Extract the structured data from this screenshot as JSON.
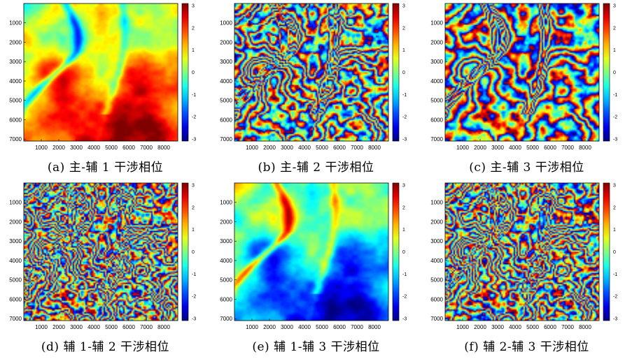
{
  "chart_data": [
    {
      "type": "heatmap",
      "caption": "(a)  主-辅 1 干涉相位",
      "pattern": 0,
      "x_ticks": [
        1000,
        2000,
        3000,
        4000,
        5000,
        6000,
        7000,
        8000
      ],
      "y_ticks": [
        1000,
        2000,
        3000,
        4000,
        5000,
        6000,
        7000
      ],
      "xlim": [
        0,
        8800
      ],
      "ylim": [
        0,
        7100
      ],
      "colorbar_ticks": [
        3,
        2,
        1,
        0,
        -1,
        -2,
        -3
      ],
      "colormap": "jet"
    },
    {
      "type": "heatmap",
      "caption": "(b)  主-辅 2 干涉相位",
      "pattern": 1,
      "x_ticks": [
        1000,
        2000,
        3000,
        4000,
        5000,
        6000,
        7000,
        8000
      ],
      "y_ticks": [
        1000,
        2000,
        3000,
        4000,
        5000,
        6000,
        7000
      ],
      "xlim": [
        0,
        8800
      ],
      "ylim": [
        0,
        7100
      ],
      "colorbar_ticks": [
        3,
        2,
        1,
        0,
        -1,
        -2,
        -3
      ],
      "colormap": "jet"
    },
    {
      "type": "heatmap",
      "caption": "(c)  主-辅 3 干涉相位",
      "pattern": 2,
      "x_ticks": [
        1000,
        2000,
        3000,
        4000,
        5000,
        6000,
        7000,
        8000
      ],
      "y_ticks": [
        1000,
        2000,
        3000,
        4000,
        5000,
        6000,
        7000
      ],
      "xlim": [
        0,
        8800
      ],
      "ylim": [
        0,
        7100
      ],
      "colorbar_ticks": [
        3,
        2,
        1,
        0,
        -1,
        -2,
        -3
      ],
      "colormap": "jet"
    },
    {
      "type": "heatmap",
      "caption": "(d)  辅 1-辅 2 干涉相位",
      "pattern": 3,
      "x_ticks": [
        1000,
        2000,
        3000,
        4000,
        5000,
        6000,
        7000,
        8000
      ],
      "y_ticks": [
        1000,
        2000,
        3000,
        4000,
        5000,
        6000,
        7000
      ],
      "xlim": [
        0,
        8800
      ],
      "ylim": [
        0,
        7100
      ],
      "colorbar_ticks": [
        3,
        2,
        1,
        0,
        -1,
        -2,
        -3
      ],
      "colormap": "jet"
    },
    {
      "type": "heatmap",
      "caption": "(e)  辅 1-辅 3 干涉相位",
      "pattern": 4,
      "x_ticks": [
        1000,
        2000,
        3000,
        4000,
        5000,
        6000,
        7000,
        8000
      ],
      "y_ticks": [
        1000,
        2000,
        3000,
        4000,
        5000,
        6000,
        7000
      ],
      "xlim": [
        0,
        8800
      ],
      "ylim": [
        0,
        7100
      ],
      "colorbar_ticks": [
        3,
        2,
        1,
        0,
        -1,
        -2,
        -3
      ],
      "colormap": "jet"
    },
    {
      "type": "heatmap",
      "caption": "(f)  辅 2-辅 3 干涉相位",
      "pattern": 5,
      "x_ticks": [
        1000,
        2000,
        3000,
        4000,
        5000,
        6000,
        7000,
        8000
      ],
      "y_ticks": [
        1000,
        2000,
        3000,
        4000,
        5000,
        6000,
        7000
      ],
      "xlim": [
        0,
        8800
      ],
      "ylim": [
        0,
        7100
      ],
      "colorbar_ticks": [
        3,
        2,
        1,
        0,
        -1,
        -2,
        -3
      ],
      "colormap": "jet"
    }
  ]
}
